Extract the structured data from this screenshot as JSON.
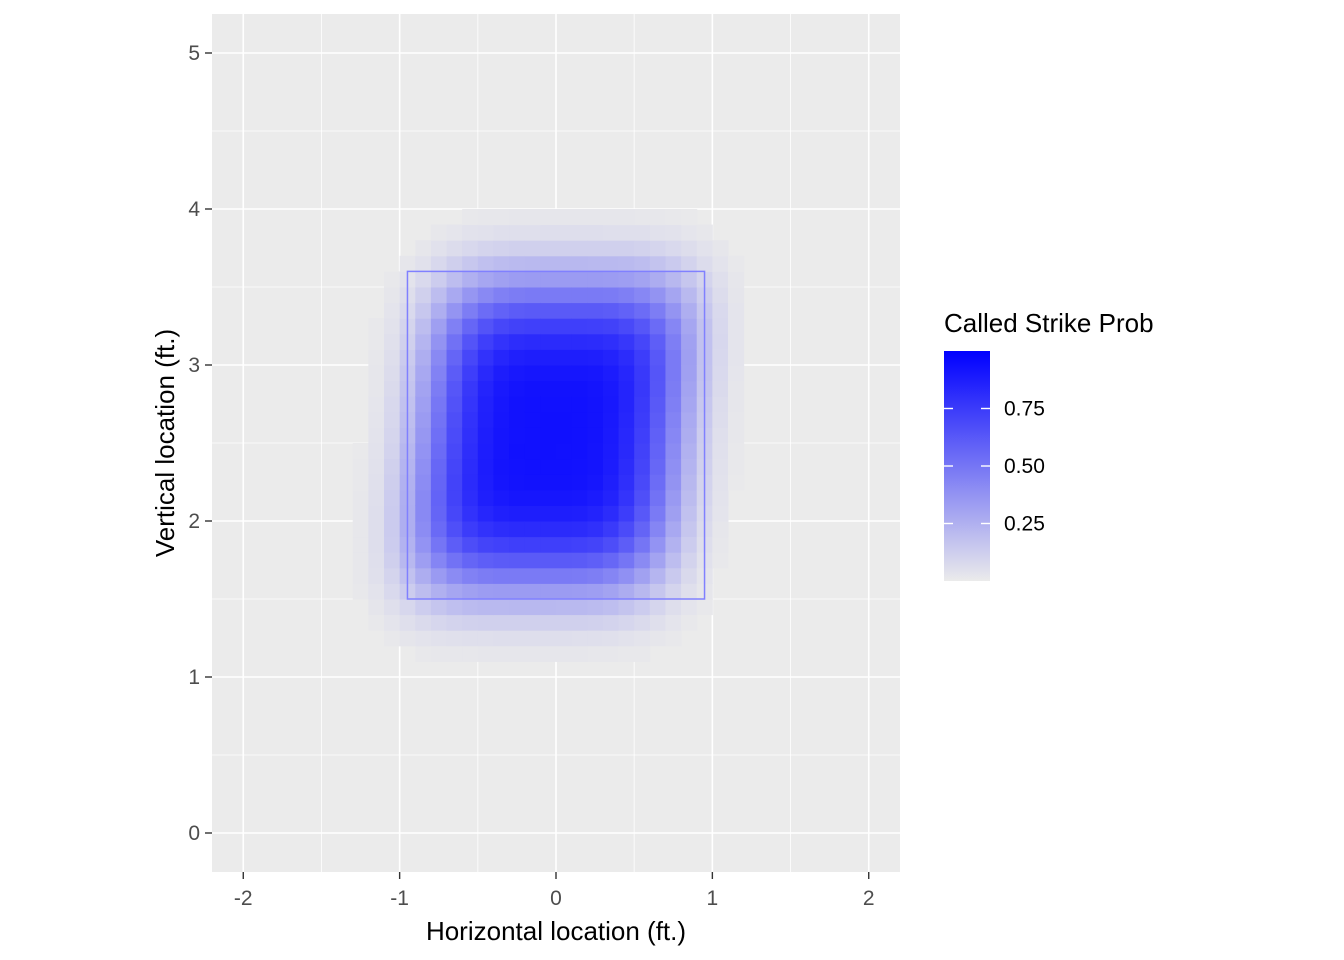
{
  "chart_data": {
    "type": "heatmap",
    "title": "",
    "xlabel": "Horizontal location (ft.)",
    "ylabel": "Vertical location (ft.)",
    "xlim": [
      -2.2,
      2.2
    ],
    "ylim": [
      -0.25,
      5.25
    ],
    "x_ticks": [
      -2,
      -1,
      0,
      1,
      2
    ],
    "x_tick_labels": [
      "-2",
      "-1",
      "0",
      "1",
      "2"
    ],
    "y_ticks": [
      0,
      1,
      2,
      3,
      4,
      5
    ],
    "y_tick_labels": [
      "0",
      "1",
      "2",
      "3",
      "4",
      "5"
    ],
    "grid": true,
    "fill_scale": {
      "name": "Called Strike Prob",
      "low_color": "#ebebeb",
      "high_color": "#0000ff",
      "range": [
        0,
        1
      ],
      "breaks": [
        0.25,
        0.5,
        0.75
      ],
      "break_labels": [
        "0.25",
        "0.50",
        "0.75"
      ],
      "legend_position": "right"
    },
    "grid_step": 0.1,
    "cells_x_range": [
      -1.5,
      1.5
    ],
    "cells_y_range": [
      1.0,
      4.0
    ],
    "probability_surface": {
      "peak": 0.93,
      "center_x": -0.03,
      "center_y": 2.55,
      "half_width_x": 0.83,
      "half_width_y": 1.0,
      "shape_exponent": 4,
      "vertical_lean_per_ft": 0.1
    },
    "strike_zone": {
      "x": [
        -0.95,
        0.95
      ],
      "y": [
        1.5,
        3.6
      ],
      "color": "#8080ff"
    }
  }
}
